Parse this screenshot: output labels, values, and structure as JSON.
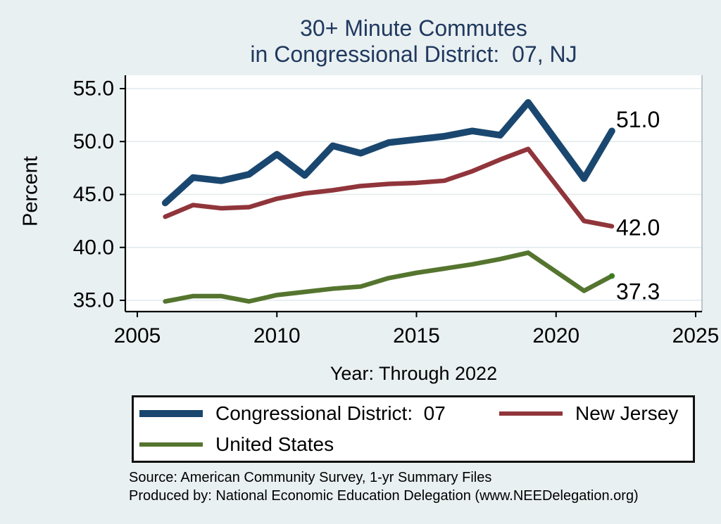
{
  "title": {
    "line1": "30+ Minute Commutes",
    "line2": "in Congressional District:  07, NJ"
  },
  "axes": {
    "y_label": "Percent",
    "x_label": "Year: Through 2022"
  },
  "chart_data": {
    "type": "line",
    "x": [
      2006,
      2007,
      2008,
      2009,
      2010,
      2011,
      2012,
      2013,
      2014,
      2015,
      2016,
      2017,
      2018,
      2019,
      2021,
      2022
    ],
    "series": [
      {
        "name": "Congressional District:  07",
        "color": "#1a476f",
        "line_width": 9.5,
        "values": [
          44.2,
          46.6,
          46.3,
          46.9,
          48.8,
          46.8,
          49.6,
          48.9,
          49.9,
          50.2,
          50.5,
          51.0,
          50.6,
          53.7,
          46.5,
          51.0
        ],
        "end_label": "51.0"
      },
      {
        "name": "New Jersey",
        "color": "#90353b",
        "line_width": 6.5,
        "values": [
          42.9,
          44.0,
          43.7,
          43.8,
          44.6,
          45.1,
          45.4,
          45.8,
          46.0,
          46.1,
          46.3,
          47.2,
          48.3,
          49.3,
          42.5,
          42.0
        ],
        "end_label": "42.0"
      },
      {
        "name": "United States",
        "color": "#55752f",
        "line_width": 6.5,
        "values": [
          34.9,
          35.4,
          35.4,
          34.9,
          35.5,
          35.8,
          36.1,
          36.3,
          37.1,
          37.6,
          38.0,
          38.4,
          38.9,
          39.5,
          35.9,
          37.3
        ],
        "end_label": "37.3",
        "end_dot": true,
        "end_dot_color": "#3a7c1e"
      }
    ],
    "xlim": [
      2005,
      2025
    ],
    "ylim": [
      35,
      55
    ],
    "x_ticks": [
      "2005",
      "2010",
      "2015",
      "2020",
      "2025"
    ],
    "y_ticks": [
      "35.0",
      "40.0",
      "45.0",
      "50.0",
      "55.0"
    ],
    "grid": true,
    "legend_position": "bottom"
  },
  "legend": {
    "items": [
      {
        "label": "Congressional District:  07",
        "color": "#1a476f"
      },
      {
        "label": "New Jersey",
        "color": "#90353b"
      },
      {
        "label": "United States",
        "color": "#55752f"
      }
    ]
  },
  "footer": {
    "source": "Source: American Community Survey, 1-yr Summary Files",
    "produced_by": "Produced by: National Economic Education Delegation (www.NEEDelegation.org)"
  },
  "colors": {
    "page_background": "#e9f0f2",
    "plot_background": "#ffffff",
    "gridline": "#e0eaed",
    "axis": "#000000",
    "title_text": "#20395e",
    "right_edge": "#9aa7ac"
  }
}
